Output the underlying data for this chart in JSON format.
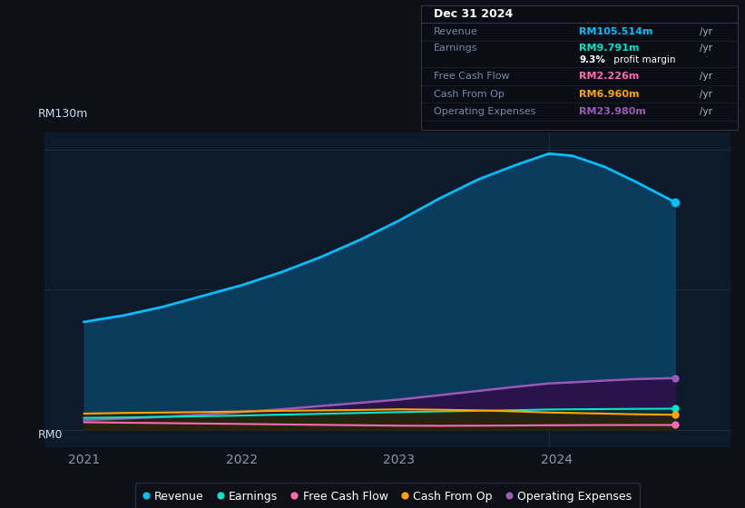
{
  "bg_color": "#0d1117",
  "chart_bg": "#0d1a2a",
  "grid_color": "#1e2d3d",
  "title_label": "RM130m",
  "zero_label": "RM0",
  "x_ticks": [
    2021,
    2022,
    2023,
    2024
  ],
  "x_range": [
    2020.75,
    2025.1
  ],
  "y_range": [
    -8,
    138
  ],
  "revenue": {
    "x": [
      2021.0,
      2021.25,
      2021.5,
      2021.75,
      2022.0,
      2022.25,
      2022.5,
      2022.75,
      2023.0,
      2023.25,
      2023.5,
      2023.75,
      2023.95,
      2024.1,
      2024.3,
      2024.5,
      2024.75
    ],
    "y": [
      50,
      53,
      57,
      62,
      67,
      73,
      80,
      88,
      97,
      107,
      116,
      123,
      128,
      127,
      122,
      115,
      105.514
    ],
    "color": "#00bfff",
    "fill_color": "#0a3a5c",
    "label": "Revenue"
  },
  "earnings": {
    "x": [
      2021.0,
      2021.25,
      2021.5,
      2021.75,
      2022.0,
      2022.25,
      2022.5,
      2022.75,
      2023.0,
      2023.25,
      2023.5,
      2023.75,
      2023.95,
      2024.1,
      2024.3,
      2024.5,
      2024.75
    ],
    "y": [
      5.5,
      5.7,
      6.0,
      6.3,
      6.6,
      7.0,
      7.4,
      7.8,
      8.2,
      8.5,
      8.8,
      9.1,
      9.4,
      9.5,
      9.6,
      9.7,
      9.791
    ],
    "color": "#00e5cc",
    "fill_color": "#003333",
    "label": "Earnings"
  },
  "free_cash_flow": {
    "x": [
      2021.0,
      2021.25,
      2021.5,
      2021.75,
      2022.0,
      2022.25,
      2022.5,
      2022.75,
      2023.0,
      2023.25,
      2023.5,
      2023.75,
      2023.95,
      2024.1,
      2024.3,
      2024.5,
      2024.75
    ],
    "y": [
      3.5,
      3.3,
      3.1,
      2.9,
      2.7,
      2.5,
      2.3,
      2.1,
      1.9,
      1.85,
      1.9,
      2.0,
      2.1,
      2.15,
      2.2,
      2.22,
      2.226
    ],
    "color": "#ff69b4",
    "label": "Free Cash Flow"
  },
  "cash_from_op": {
    "x": [
      2021.0,
      2021.25,
      2021.5,
      2021.75,
      2022.0,
      2022.25,
      2022.5,
      2022.75,
      2023.0,
      2023.25,
      2023.5,
      2023.75,
      2023.95,
      2024.1,
      2024.3,
      2024.5,
      2024.75
    ],
    "y": [
      7.5,
      7.8,
      8.0,
      8.2,
      8.5,
      8.8,
      9.0,
      9.2,
      9.5,
      9.3,
      9.0,
      8.5,
      8.0,
      7.8,
      7.5,
      7.2,
      6.96
    ],
    "color": "#ffa500",
    "fill_color": "#332200",
    "label": "Cash From Op"
  },
  "op_expenses": {
    "x": [
      2021.0,
      2021.25,
      2021.5,
      2021.75,
      2022.0,
      2022.25,
      2022.5,
      2022.75,
      2023.0,
      2023.25,
      2023.5,
      2023.75,
      2023.95,
      2024.1,
      2024.3,
      2024.5,
      2024.75
    ],
    "y": [
      4.5,
      5.2,
      6.0,
      7.0,
      8.2,
      9.5,
      11.0,
      12.5,
      14.0,
      16.0,
      18.0,
      20.0,
      21.5,
      22.0,
      22.8,
      23.5,
      23.98
    ],
    "color": "#9b59b6",
    "fill_color": "#2d0f4a",
    "label": "Operating Expenses"
  },
  "info_panel": {
    "date": "Dec 31 2024",
    "revenue_label": "Revenue",
    "revenue_value": "RM105.514m",
    "revenue_color": "#00bfff",
    "earnings_label": "Earnings",
    "earnings_value": "RM9.791m",
    "earnings_color": "#00e5cc",
    "margin_text": "9.3%",
    "margin_suffix": " profit margin",
    "fcf_label": "Free Cash Flow",
    "fcf_value": "RM2.226m",
    "fcf_color": "#ff69b4",
    "cashop_label": "Cash From Op",
    "cashop_value": "RM6.960m",
    "cashop_color": "#ffa500",
    "opex_label": "Operating Expenses",
    "opex_value": "RM23.980m",
    "opex_color": "#9b59b6"
  },
  "legend": [
    {
      "label": "Revenue",
      "color": "#00bfff"
    },
    {
      "label": "Earnings",
      "color": "#00e5cc"
    },
    {
      "label": "Free Cash Flow",
      "color": "#ff69b4"
    },
    {
      "label": "Cash From Op",
      "color": "#ffa500"
    },
    {
      "label": "Operating Expenses",
      "color": "#9b59b6"
    }
  ],
  "vline_x": 2023.95
}
